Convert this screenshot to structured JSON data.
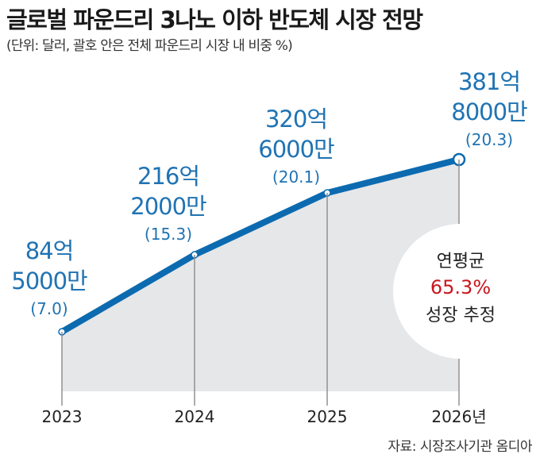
{
  "header": {
    "title": "글로벌 파운드리 3나노 이하 반도체 시장 전망",
    "subtitle": "(단위: 달러, 괄호 안은 전체 파운드리 시장 내 비중 %)"
  },
  "callout": {
    "line1": "연평균",
    "line2": "65.3%",
    "line3": "성장 추정"
  },
  "footer": {
    "source": "자료: 시장조사기관 옴디아"
  },
  "colors": {
    "line": "#0c6bb0",
    "label": "#1f73b3",
    "area": "#e6e7e9",
    "accent": "#c8161d"
  },
  "chart_data": {
    "type": "area",
    "categories": [
      "2023",
      "2024",
      "2025",
      "2026년"
    ],
    "series": [
      {
        "values": [
          8450000000,
          21620000000,
          32060000000,
          38180000000
        ],
        "value_labels": [
          [
            "84억",
            "5000만"
          ],
          [
            "216억",
            "2000만"
          ],
          [
            "320억",
            "6000만"
          ],
          [
            "381억",
            "8000만"
          ]
        ],
        "share_labels": [
          "(7.0)",
          "(15.3)",
          "(20.1)",
          "(20.3)"
        ],
        "share": [
          7.0,
          15.3,
          20.1,
          20.3
        ]
      }
    ],
    "title": "글로벌 파운드리 3나노 이하 반도체 시장 전망",
    "xlabel": "",
    "ylabel": "",
    "grid": false,
    "legend": "none"
  }
}
